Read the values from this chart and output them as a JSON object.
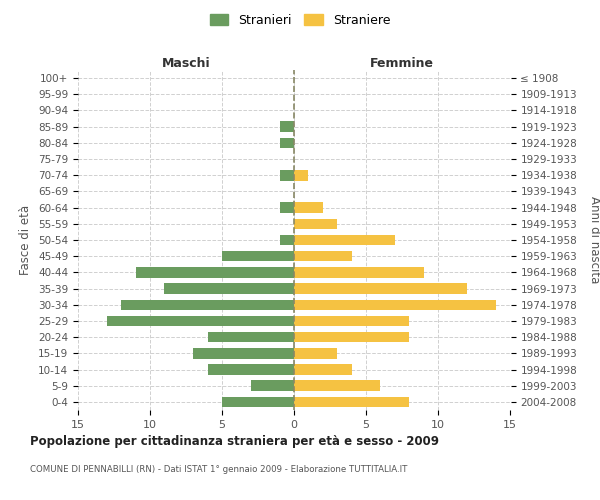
{
  "age_groups": [
    "100+",
    "95-99",
    "90-94",
    "85-89",
    "80-84",
    "75-79",
    "70-74",
    "65-69",
    "60-64",
    "55-59",
    "50-54",
    "45-49",
    "40-44",
    "35-39",
    "30-34",
    "25-29",
    "20-24",
    "15-19",
    "10-14",
    "5-9",
    "0-4"
  ],
  "birth_years": [
    "≤ 1908",
    "1909-1913",
    "1914-1918",
    "1919-1923",
    "1924-1928",
    "1929-1933",
    "1934-1938",
    "1939-1943",
    "1944-1948",
    "1949-1953",
    "1954-1958",
    "1959-1963",
    "1964-1968",
    "1969-1973",
    "1974-1978",
    "1979-1983",
    "1984-1988",
    "1989-1993",
    "1994-1998",
    "1999-2003",
    "2004-2008"
  ],
  "maschi": [
    0,
    0,
    0,
    1,
    1,
    0,
    1,
    0,
    1,
    0,
    1,
    5,
    11,
    9,
    12,
    13,
    6,
    7,
    6,
    3,
    5
  ],
  "femmine": [
    0,
    0,
    0,
    0,
    0,
    0,
    1,
    0,
    2,
    3,
    7,
    4,
    9,
    12,
    14,
    8,
    8,
    3,
    4,
    6,
    8
  ],
  "color_maschi": "#6a9c5f",
  "color_femmine": "#f5c242",
  "title": "Popolazione per cittadinanza straniera per età e sesso - 2009",
  "subtitle": "COMUNE DI PENNABILLI (RN) - Dati ISTAT 1° gennaio 2009 - Elaborazione TUTTITALIA.IT",
  "ylabel_left": "Fasce di età",
  "ylabel_right": "Anni di nascita",
  "xlabel_left": "Maschi",
  "xlabel_top_right": "Femmine",
  "legend_stranieri": "Stranieri",
  "legend_straniere": "Straniere",
  "xlim": 15,
  "background_color": "#ffffff",
  "grid_color": "#d0d0d0"
}
